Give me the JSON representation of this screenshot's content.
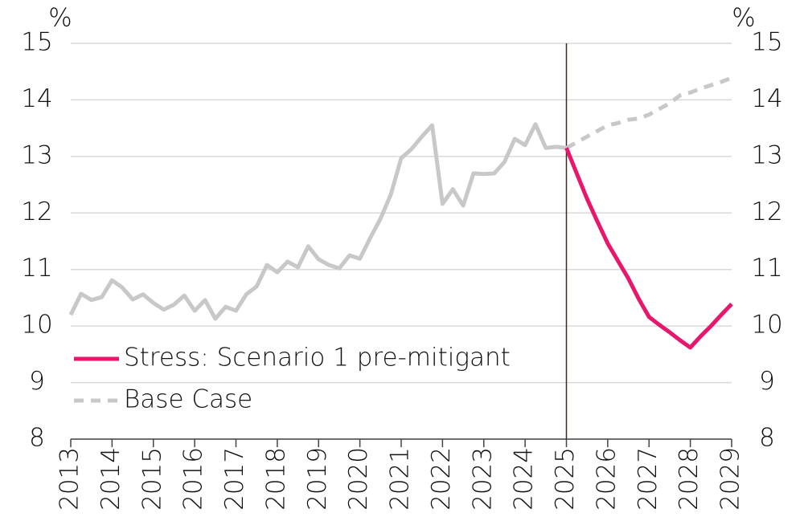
{
  "chart_data": {
    "type": "line",
    "y_unit": "%",
    "y2_unit": "%",
    "xlim": [
      2013,
      2029
    ],
    "xticks": [
      2013,
      2014,
      2015,
      2016,
      2017,
      2018,
      2019,
      2020,
      2021,
      2022,
      2023,
      2024,
      2025,
      2026,
      2027,
      2028,
      2029
    ],
    "ylim": [
      8,
      15
    ],
    "yticks": [
      8,
      9,
      10,
      11,
      12,
      13,
      14,
      15
    ],
    "y2lim": [
      8,
      15
    ],
    "y2ticks": [
      8,
      9,
      10,
      11,
      12,
      13,
      14,
      15
    ],
    "grid": true,
    "vline": 2025,
    "legend": "lower left",
    "series": [
      {
        "color": "#c8c8c8",
        "dashed": false,
        "x": [
          2013,
          2013.25,
          2013.5,
          2013.75,
          2014,
          2014.25,
          2014.5,
          2014.75,
          2015,
          2015.25,
          2015.5,
          2015.75,
          2016,
          2016.25,
          2016.5,
          2016.75,
          2017,
          2017.25,
          2017.5,
          2017.75,
          2018,
          2018.25,
          2018.5,
          2018.75,
          2019,
          2019.25,
          2019.5,
          2019.75,
          2020,
          2020.25,
          2020.5,
          2020.75,
          2021,
          2021.25,
          2021.5,
          2021.75,
          2022,
          2022.25,
          2022.5,
          2022.75,
          2023,
          2023.25,
          2023.5,
          2023.75,
          2024,
          2024.25,
          2024.5,
          2024.75,
          2025
        ],
        "values": [
          10.2,
          10.57,
          10.46,
          10.51,
          10.81,
          10.68,
          10.47,
          10.56,
          10.41,
          10.29,
          10.38,
          10.54,
          10.27,
          10.46,
          10.13,
          10.34,
          10.27,
          10.56,
          10.7,
          11.08,
          10.95,
          11.14,
          11.04,
          11.41,
          11.18,
          11.08,
          11.02,
          11.25,
          11.19,
          11.56,
          11.9,
          12.33,
          12.97,
          13.13,
          13.35,
          13.55,
          12.16,
          12.42,
          12.13,
          12.7,
          12.69,
          12.7,
          12.9,
          13.31,
          13.2,
          13.57,
          13.15,
          13.17,
          13.15
        ]
      },
      {
        "name": "Stress: Scenario 1 pre-mitigant",
        "color": "#e8176b",
        "dashed": false,
        "x": [
          2025,
          2025.25,
          2025.5,
          2025.75,
          2026,
          2026.25,
          2026.5,
          2026.75,
          2027,
          2027.25,
          2027.5,
          2027.75,
          2028,
          2028.25,
          2028.5,
          2028.75,
          2029
        ],
        "values": [
          13.15,
          12.7,
          12.25,
          11.85,
          11.46,
          11.15,
          10.84,
          10.48,
          10.16,
          10.02,
          9.89,
          9.75,
          9.62,
          9.82,
          10.0,
          10.2,
          10.39
        ]
      },
      {
        "name": "Base Case",
        "color": "#c8c8c8",
        "dashed": true,
        "x": [
          2025,
          2025.25,
          2025.5,
          2025.75,
          2026,
          2026.25,
          2026.5,
          2026.75,
          2027,
          2027.25,
          2027.5,
          2027.75,
          2028,
          2028.25,
          2028.5,
          2028.75,
          2029
        ],
        "values": [
          13.15,
          13.25,
          13.35,
          13.45,
          13.55,
          13.59,
          13.65,
          13.67,
          13.74,
          13.84,
          13.94,
          14.08,
          14.13,
          14.2,
          14.26,
          14.32,
          14.39
        ]
      }
    ]
  }
}
